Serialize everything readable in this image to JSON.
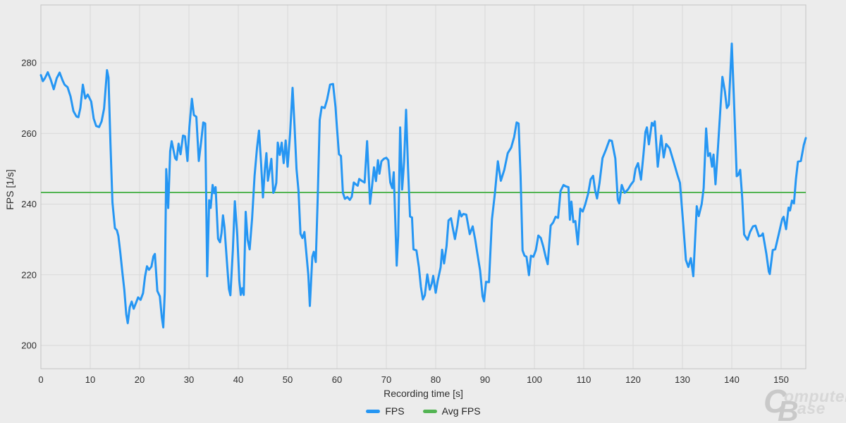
{
  "chart_data": {
    "type": "line",
    "xlabel": "Recording time [s]",
    "ylabel": "FPS [1/s]",
    "xlim": [
      0,
      155
    ],
    "ylim": [
      193.4,
      296.4
    ],
    "x_ticks": [
      0,
      10,
      20,
      30,
      40,
      50,
      60,
      70,
      80,
      90,
      100,
      110,
      120,
      130,
      140,
      150
    ],
    "y_ticks": [
      200,
      220,
      240,
      260,
      280
    ],
    "grid": true,
    "legend": [
      "FPS",
      "Avg FPS"
    ],
    "legend_position": "bottom-center",
    "colors": {
      "fps_line": "#2596f3",
      "avg_line": "#53b453",
      "grid": "#d9d9d9",
      "border": "#c3c3c3",
      "background": "#ececec"
    },
    "avg_fps": 243.3,
    "series": [
      {
        "name": "FPS",
        "color": "#2596f3"
      },
      {
        "name": "Avg FPS",
        "color": "#53b453",
        "value": 243.3
      }
    ],
    "fps_points": [
      [
        0,
        276.5
      ],
      [
        0.4,
        274.8
      ],
      [
        0.8,
        275.6
      ],
      [
        1.4,
        277.3
      ],
      [
        2,
        275.2
      ],
      [
        2.6,
        272.5
      ],
      [
        3.2,
        275.6
      ],
      [
        3.8,
        277.2
      ],
      [
        4.4,
        275
      ],
      [
        4.8,
        273.8
      ],
      [
        5.4,
        273.1
      ],
      [
        6,
        270.5
      ],
      [
        6.6,
        266.3
      ],
      [
        7.2,
        264.8
      ],
      [
        7.6,
        264.6
      ],
      [
        8,
        267.2
      ],
      [
        8.5,
        273.8
      ],
      [
        9,
        269.9
      ],
      [
        9.5,
        271
      ],
      [
        10.2,
        269
      ],
      [
        10.7,
        264.2
      ],
      [
        11.2,
        262.1
      ],
      [
        11.8,
        261.8
      ],
      [
        12.3,
        263.4
      ],
      [
        12.8,
        267
      ],
      [
        13.4,
        277.9
      ],
      [
        13.7,
        275.8
      ],
      [
        14.1,
        257
      ],
      [
        14.5,
        240.5
      ],
      [
        15,
        233.2
      ],
      [
        15.4,
        232.6
      ],
      [
        15.7,
        231
      ],
      [
        16.1,
        226.2
      ],
      [
        16.5,
        220.8
      ],
      [
        16.9,
        215.8
      ],
      [
        17.3,
        208.8
      ],
      [
        17.6,
        206.3
      ],
      [
        18,
        210.8
      ],
      [
        18.4,
        212.4
      ],
      [
        18.8,
        210.4
      ],
      [
        19.2,
        211.8
      ],
      [
        19.7,
        213.6
      ],
      [
        20.2,
        212.9
      ],
      [
        20.7,
        214.8
      ],
      [
        21.1,
        219.5
      ],
      [
        21.5,
        222.4
      ],
      [
        21.9,
        221.4
      ],
      [
        22.4,
        222.3
      ],
      [
        22.8,
        225.2
      ],
      [
        23.1,
        225.9
      ],
      [
        23.6,
        215.4
      ],
      [
        24.1,
        213.9
      ],
      [
        24.5,
        208
      ],
      [
        24.8,
        205.1
      ],
      [
        25.1,
        215
      ],
      [
        25.4,
        249.9
      ],
      [
        25.8,
        238.9
      ],
      [
        26.2,
        255
      ],
      [
        26.5,
        257.8
      ],
      [
        26.8,
        255.8
      ],
      [
        27.2,
        253
      ],
      [
        27.5,
        252.5
      ],
      [
        27.9,
        257.1
      ],
      [
        28.3,
        254.1
      ],
      [
        28.8,
        259.4
      ],
      [
        29.2,
        259.2
      ],
      [
        29.7,
        252.2
      ],
      [
        30.1,
        262
      ],
      [
        30.6,
        269.8
      ],
      [
        31,
        265.2
      ],
      [
        31.5,
        264.7
      ],
      [
        32,
        252.2
      ],
      [
        32.5,
        258
      ],
      [
        32.9,
        263.1
      ],
      [
        33.3,
        262.8
      ],
      [
        33.7,
        219.6
      ],
      [
        34.1,
        241.1
      ],
      [
        34.4,
        238.9
      ],
      [
        34.8,
        245.4
      ],
      [
        35.1,
        243.1
      ],
      [
        35.4,
        244.8
      ],
      [
        35.9,
        230.2
      ],
      [
        36.3,
        229.2
      ],
      [
        36.6,
        231.8
      ],
      [
        36.9,
        236.8
      ],
      [
        37.2,
        233.5
      ],
      [
        37.7,
        223.6
      ],
      [
        38.1,
        216
      ],
      [
        38.4,
        214.2
      ],
      [
        38.9,
        227
      ],
      [
        39.3,
        240.8
      ],
      [
        39.8,
        231
      ],
      [
        40.2,
        218.5
      ],
      [
        40.5,
        214.3
      ],
      [
        40.8,
        216.2
      ],
      [
        41.1,
        214.3
      ],
      [
        41.5,
        237.8
      ],
      [
        41.9,
        229.9
      ],
      [
        42.3,
        227.2
      ],
      [
        42.8,
        236
      ],
      [
        43.3,
        248
      ],
      [
        43.8,
        256
      ],
      [
        44.2,
        260.8
      ],
      [
        44.6,
        252
      ],
      [
        45,
        241.9
      ],
      [
        45.4,
        250.1
      ],
      [
        45.7,
        254.4
      ],
      [
        46,
        246.6
      ],
      [
        46.4,
        250
      ],
      [
        46.7,
        252.8
      ],
      [
        47.1,
        243.2
      ],
      [
        47.4,
        244.1
      ],
      [
        47.7,
        246
      ],
      [
        48,
        257.4
      ],
      [
        48.4,
        253.9
      ],
      [
        48.8,
        257.4
      ],
      [
        49.2,
        251.6
      ],
      [
        49.6,
        258
      ],
      [
        50,
        250.6
      ],
      [
        50.5,
        260
      ],
      [
        51,
        272.9
      ],
      [
        51.4,
        262
      ],
      [
        51.8,
        249.9
      ],
      [
        52.2,
        243.8
      ],
      [
        52.6,
        231.6
      ],
      [
        53,
        230.4
      ],
      [
        53.4,
        232.1
      ],
      [
        53.8,
        226
      ],
      [
        54.2,
        219.8
      ],
      [
        54.5,
        211.2
      ],
      [
        55,
        225.1
      ],
      [
        55.3,
        226.5
      ],
      [
        55.7,
        223.6
      ],
      [
        56.1,
        242
      ],
      [
        56.5,
        263.8
      ],
      [
        56.9,
        267.5
      ],
      [
        57.5,
        267.2
      ],
      [
        58,
        269.6
      ],
      [
        58.6,
        273.8
      ],
      [
        59.2,
        274
      ],
      [
        59.7,
        267.5
      ],
      [
        60,
        261.5
      ],
      [
        60.4,
        254.1
      ],
      [
        60.8,
        253.6
      ],
      [
        61.2,
        243.2
      ],
      [
        61.6,
        241.5
      ],
      [
        62.1,
        242
      ],
      [
        62.6,
        241.2
      ],
      [
        63,
        242.1
      ],
      [
        63.4,
        246.1
      ],
      [
        63.8,
        245.6
      ],
      [
        64.2,
        245.2
      ],
      [
        64.5,
        247.1
      ],
      [
        65,
        246.6
      ],
      [
        65.6,
        246.1
      ],
      [
        66.1,
        257.8
      ],
      [
        66.7,
        240.1
      ],
      [
        67.1,
        245
      ],
      [
        67.5,
        250.4
      ],
      [
        67.9,
        246.5
      ],
      [
        68.3,
        252.4
      ],
      [
        68.6,
        248.6
      ],
      [
        69,
        252.1
      ],
      [
        69.5,
        252.8
      ],
      [
        70,
        253.1
      ],
      [
        70.4,
        252.4
      ],
      [
        70.8,
        246.1
      ],
      [
        71.2,
        244.5
      ],
      [
        71.5,
        249
      ],
      [
        72.1,
        222.6
      ],
      [
        72.4,
        231
      ],
      [
        72.8,
        261.7
      ],
      [
        73.2,
        244.1
      ],
      [
        73.6,
        252
      ],
      [
        74,
        266.7
      ],
      [
        74.4,
        250
      ],
      [
        74.8,
        236.5
      ],
      [
        75.2,
        236.2
      ],
      [
        75.5,
        227.2
      ],
      [
        76.1,
        226.9
      ],
      [
        76.6,
        222.1
      ],
      [
        77,
        216.6
      ],
      [
        77.4,
        213
      ],
      [
        77.8,
        214.2
      ],
      [
        78.3,
        220.1
      ],
      [
        78.8,
        215.8
      ],
      [
        79.2,
        217.5
      ],
      [
        79.5,
        219.7
      ],
      [
        80,
        214.9
      ],
      [
        80.4,
        218.2
      ],
      [
        81,
        222.1
      ],
      [
        81.3,
        227.1
      ],
      [
        81.7,
        223.2
      ],
      [
        82.2,
        228.1
      ],
      [
        82.6,
        235.4
      ],
      [
        83.1,
        236
      ],
      [
        83.5,
        233
      ],
      [
        83.9,
        230.1
      ],
      [
        84.4,
        234
      ],
      [
        84.8,
        238.1
      ],
      [
        85.2,
        236.5
      ],
      [
        85.6,
        237.2
      ],
      [
        86.2,
        237
      ],
      [
        86.9,
        231.5
      ],
      [
        87.5,
        233.7
      ],
      [
        88,
        230
      ],
      [
        88.4,
        226.4
      ],
      [
        89,
        221.2
      ],
      [
        89.5,
        213.9
      ],
      [
        89.8,
        212.5
      ],
      [
        90.2,
        218
      ],
      [
        90.8,
        217.9
      ],
      [
        91.4,
        235.7
      ],
      [
        92,
        243.1
      ],
      [
        92.6,
        252.1
      ],
      [
        93.2,
        246.6
      ],
      [
        93.9,
        249.7
      ],
      [
        94.6,
        254.4
      ],
      [
        95.3,
        256
      ],
      [
        95.9,
        259
      ],
      [
        96.4,
        263.1
      ],
      [
        96.8,
        262.8
      ],
      [
        97.2,
        248
      ],
      [
        97.6,
        226.9
      ],
      [
        98,
        225.4
      ],
      [
        98.4,
        225.1
      ],
      [
        98.7,
        222
      ],
      [
        98.9,
        219.9
      ],
      [
        99.3,
        225.4
      ],
      [
        99.8,
        225.1
      ],
      [
        100.3,
        227
      ],
      [
        100.8,
        231.1
      ],
      [
        101.3,
        230.4
      ],
      [
        101.8,
        228
      ],
      [
        102.3,
        225
      ],
      [
        102.7,
        223
      ],
      [
        103.3,
        233.9
      ],
      [
        103.8,
        234.8
      ],
      [
        104.3,
        236.4
      ],
      [
        104.8,
        236.1
      ],
      [
        105.3,
        243.7
      ],
      [
        105.9,
        245.4
      ],
      [
        106.4,
        245
      ],
      [
        106.9,
        244.8
      ],
      [
        107.2,
        235.6
      ],
      [
        107.5,
        240.7
      ],
      [
        107.9,
        234.9
      ],
      [
        108.3,
        235.2
      ],
      [
        108.8,
        228.6
      ],
      [
        109.3,
        238.7
      ],
      [
        109.8,
        237.9
      ],
      [
        110.3,
        239.9
      ],
      [
        110.9,
        243
      ],
      [
        111.4,
        247
      ],
      [
        111.9,
        248
      ],
      [
        112.3,
        244
      ],
      [
        112.7,
        241.6
      ],
      [
        113.2,
        246
      ],
      [
        113.8,
        253
      ],
      [
        114.5,
        255.4
      ],
      [
        115.2,
        258.1
      ],
      [
        115.7,
        257.9
      ],
      [
        116.4,
        252.9
      ],
      [
        116.9,
        241.2
      ],
      [
        117.2,
        240.2
      ],
      [
        117.7,
        245.4
      ],
      [
        118.3,
        243.2
      ],
      [
        119,
        244.2
      ],
      [
        119.6,
        245.6
      ],
      [
        120.1,
        246.5
      ],
      [
        120.5,
        250
      ],
      [
        121,
        251.6
      ],
      [
        121.6,
        246.9
      ],
      [
        122.1,
        254
      ],
      [
        122.5,
        260.4
      ],
      [
        122.8,
        261.7
      ],
      [
        123.2,
        256.9
      ],
      [
        123.8,
        263
      ],
      [
        124.1,
        262.2
      ],
      [
        124.4,
        263.4
      ],
      [
        125,
        250.6
      ],
      [
        125.7,
        259.4
      ],
      [
        126.2,
        253.2
      ],
      [
        126.7,
        257
      ],
      [
        127.4,
        255.8
      ],
      [
        128.3,
        251.6
      ],
      [
        129,
        248.2
      ],
      [
        129.5,
        246
      ],
      [
        130.2,
        233.6
      ],
      [
        130.7,
        224.2
      ],
      [
        131.2,
        222.2
      ],
      [
        131.7,
        224.7
      ],
      [
        132.2,
        219.6
      ],
      [
        132.9,
        239.4
      ],
      [
        133.3,
        236.6
      ],
      [
        133.9,
        240
      ],
      [
        134.3,
        244.5
      ],
      [
        134.8,
        261.4
      ],
      [
        135.2,
        253.6
      ],
      [
        135.6,
        254.4
      ],
      [
        136,
        250.6
      ],
      [
        136.3,
        254
      ],
      [
        136.7,
        245.6
      ],
      [
        137.2,
        256
      ],
      [
        137.7,
        267.2
      ],
      [
        138.1,
        276
      ],
      [
        138.6,
        271.9
      ],
      [
        139,
        267.2
      ],
      [
        139.4,
        268.1
      ],
      [
        140,
        285.4
      ],
      [
        140.4,
        271
      ],
      [
        141,
        247.9
      ],
      [
        141.3,
        248.2
      ],
      [
        141.7,
        249.7
      ],
      [
        142.1,
        242
      ],
      [
        142.5,
        231.4
      ],
      [
        142.9,
        230.5
      ],
      [
        143.2,
        229.9
      ],
      [
        143.7,
        232.1
      ],
      [
        144.3,
        233.7
      ],
      [
        144.8,
        233.9
      ],
      [
        145.5,
        230.9
      ],
      [
        146,
        231.1
      ],
      [
        146.3,
        231.7
      ],
      [
        147,
        226
      ],
      [
        147.5,
        220.9
      ],
      [
        147.7,
        220.2
      ],
      [
        148.3,
        227
      ],
      [
        148.8,
        227.2
      ],
      [
        149.5,
        231.4
      ],
      [
        150.2,
        235.7
      ],
      [
        150.5,
        236.4
      ],
      [
        151,
        232.9
      ],
      [
        151.5,
        239
      ],
      [
        151.8,
        238.2
      ],
      [
        152.2,
        241
      ],
      [
        152.6,
        240.2
      ],
      [
        153,
        247.1
      ],
      [
        153.4,
        252
      ],
      [
        154,
        252.2
      ],
      [
        154.6,
        256.8
      ],
      [
        155,
        258.7
      ]
    ]
  },
  "watermark": {
    "c": "C",
    "omputer": "omputer",
    "b": "B",
    "ase": "ase"
  }
}
